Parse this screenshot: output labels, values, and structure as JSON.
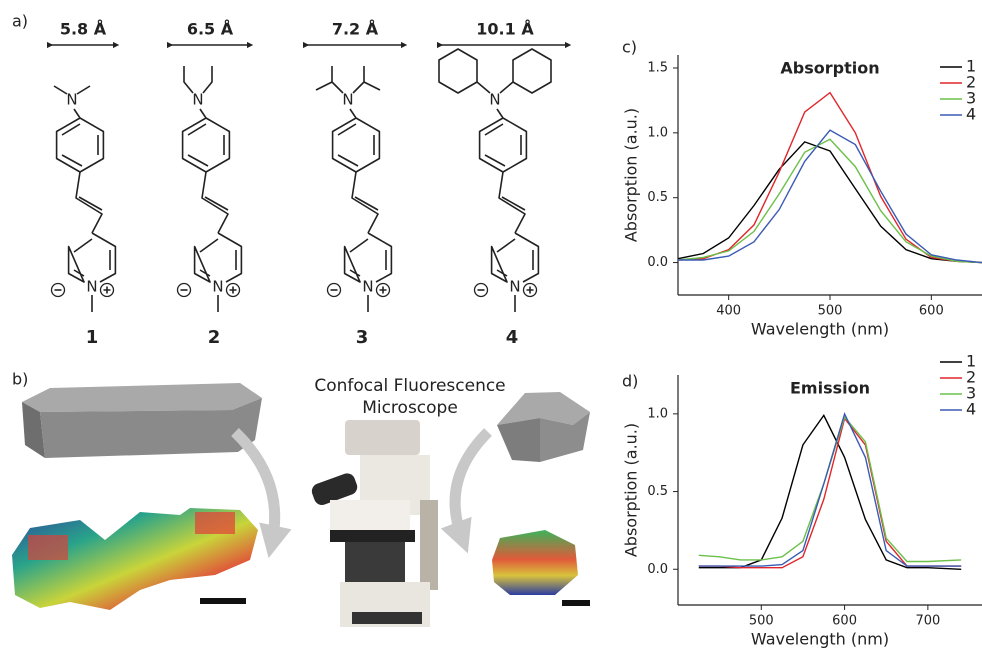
{
  "panel_labels": [
    "a)",
    "b)",
    "c)",
    "d)"
  ],
  "molecules": [
    {
      "width": "5.8 Å",
      "number": "1",
      "atoms": [
        "N",
        "N"
      ]
    },
    {
      "width": "6.5 Å",
      "number": "2",
      "atoms": [
        "N",
        "N"
      ]
    },
    {
      "width": "7.2 Å",
      "number": "3",
      "atoms": [
        "N",
        "N"
      ]
    },
    {
      "width": "10.1 Å",
      "number": "4",
      "atoms": [
        "N",
        "N"
      ]
    }
  ],
  "microscope_label": [
    "Confocal Fluorescence",
    "Microscope"
  ],
  "chart_data": [
    {
      "type": "line",
      "title": "Absorption",
      "xlabel": "Wavelength (nm)",
      "ylabel": "Absorption (a.u.)",
      "x": [
        350,
        375,
        400,
        425,
        450,
        475,
        500,
        525,
        550,
        575,
        600,
        625,
        650
      ],
      "series": [
        {
          "name": "1",
          "color": "#000000",
          "values": [
            0.03,
            0.07,
            0.19,
            0.44,
            0.72,
            0.93,
            0.86,
            0.57,
            0.28,
            0.1,
            0.03,
            0.01,
            0.0
          ]
        },
        {
          "name": "2",
          "color": "#e0262b",
          "values": [
            0.02,
            0.03,
            0.1,
            0.29,
            0.7,
            1.16,
            1.31,
            1.0,
            0.51,
            0.18,
            0.04,
            0.01,
            0.0
          ]
        },
        {
          "name": "3",
          "color": "#6cc04a",
          "values": [
            0.02,
            0.04,
            0.09,
            0.24,
            0.53,
            0.85,
            0.95,
            0.74,
            0.4,
            0.16,
            0.05,
            0.01,
            0.0
          ]
        },
        {
          "name": "4",
          "color": "#3a5bb5",
          "values": [
            0.02,
            0.02,
            0.05,
            0.16,
            0.41,
            0.78,
            1.02,
            0.91,
            0.55,
            0.22,
            0.06,
            0.02,
            0.0
          ]
        }
      ],
      "xlim": [
        350,
        650
      ],
      "ylim": [
        -0.25,
        1.6
      ],
      "xticks": [
        400,
        500,
        600
      ],
      "yticks": [
        {
          "value": 0,
          "label": "0.0"
        },
        0.5,
        {
          "value": 1,
          "label": "1.0"
        },
        1.5
      ],
      "legend": "top-right"
    },
    {
      "type": "line",
      "title": "Emission",
      "xlabel": "Wavelength (nm)",
      "ylabel": "Absorption (a.u.)",
      "x": [
        425,
        450,
        475,
        500,
        525,
        550,
        575,
        600,
        625,
        650,
        675,
        700,
        740
      ],
      "series": [
        {
          "name": "1",
          "color": "#000000",
          "values": [
            0.01,
            0.01,
            0.01,
            0.06,
            0.33,
            0.8,
            0.99,
            0.72,
            0.32,
            0.06,
            0.01,
            0.01,
            0.0
          ]
        },
        {
          "name": "2",
          "color": "#e0262b",
          "values": [
            0.02,
            0.02,
            0.01,
            0.01,
            0.01,
            0.08,
            0.45,
            0.97,
            0.8,
            0.18,
            0.02,
            0.02,
            0.02
          ]
        },
        {
          "name": "3",
          "color": "#6cc04a",
          "values": [
            0.09,
            0.08,
            0.06,
            0.06,
            0.08,
            0.18,
            0.55,
            0.98,
            0.82,
            0.2,
            0.05,
            0.05,
            0.06
          ]
        },
        {
          "name": "4",
          "color": "#3a5bb5",
          "values": [
            0.02,
            0.02,
            0.02,
            0.02,
            0.03,
            0.12,
            0.55,
            1.0,
            0.72,
            0.12,
            0.02,
            0.02,
            0.02
          ]
        }
      ],
      "xlim": [
        400,
        765
      ],
      "ylim": [
        -0.23,
        1.25
      ],
      "xticks": [
        500,
        600,
        700
      ],
      "yticks": [
        {
          "value": 0,
          "label": "0.0"
        },
        0.5,
        {
          "value": 1,
          "label": "1.0"
        }
      ],
      "legend": "top-right"
    }
  ]
}
